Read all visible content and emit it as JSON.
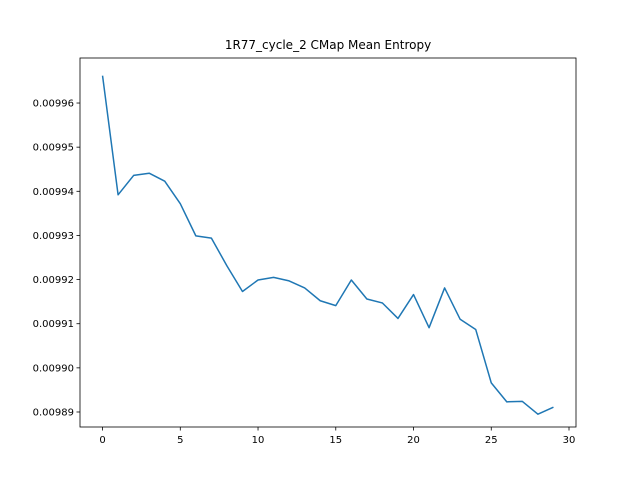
{
  "chart_data": {
    "type": "line",
    "title": "1R77_cycle_2 CMap Mean Entropy",
    "xlabel": "",
    "ylabel": "",
    "xlim": [
      -1.45,
      30.45
    ],
    "ylim": [
      0.0098866,
      0.0099702
    ],
    "x_ticks": [
      0,
      5,
      10,
      15,
      20,
      25,
      30
    ],
    "y_ticks": [
      0.00989,
      0.0099,
      0.00991,
      0.00992,
      0.00993,
      0.00994,
      0.00995,
      0.00996
    ],
    "x_tick_labels": [
      "0",
      "5",
      "10",
      "15",
      "20",
      "25",
      "30"
    ],
    "y_tick_labels": [
      "0.00989",
      "0.00990",
      "0.00991",
      "0.00992",
      "0.00993",
      "0.00994",
      "0.00995",
      "0.00996"
    ],
    "grid": false,
    "series": [
      {
        "color": "#1f77b4",
        "x": [
          0,
          1,
          2,
          3,
          4,
          5,
          6,
          7,
          8,
          9,
          10,
          11,
          12,
          13,
          14,
          15,
          16,
          17,
          18,
          19,
          20,
          21,
          22,
          23,
          24,
          25,
          26,
          27,
          28,
          29
        ],
        "values": [
          0.0099662,
          0.0099392,
          0.0099436,
          0.0099441,
          0.0099423,
          0.0099372,
          0.0099299,
          0.0099294,
          0.0099231,
          0.0099173,
          0.0099199,
          0.0099205,
          0.0099197,
          0.0099181,
          0.0099152,
          0.0099141,
          0.0099199,
          0.0099156,
          0.0099147,
          0.0099112,
          0.0099166,
          0.0099091,
          0.0099181,
          0.009911,
          0.0099087,
          0.0098966,
          0.0098923,
          0.0098924,
          0.0098895,
          0.0098911
        ]
      }
    ]
  }
}
